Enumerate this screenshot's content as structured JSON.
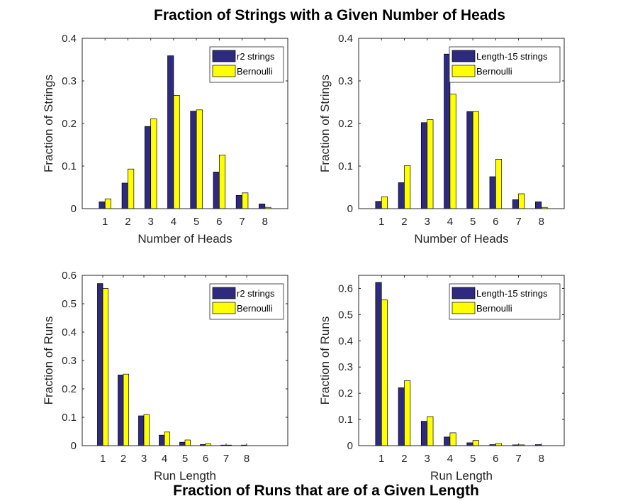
{
  "figure": {
    "top_title": "Fraction of Strings with a Given Number of Heads",
    "bottom_title": "Fraction of Runs that are of a Given Length"
  },
  "colors": {
    "series1": "#2e2a7f",
    "series2": "#ffff00"
  },
  "chart_data": [
    {
      "type": "bar",
      "xlabel": "Number of Heads",
      "ylabel": "Fraction of Strings",
      "categories": [
        "1",
        "2",
        "3",
        "4",
        "5",
        "6",
        "7",
        "8"
      ],
      "xlim": [
        0,
        9
      ],
      "ylim": [
        0,
        0.4
      ],
      "yticks": [
        "0",
        "0.1",
        "0.2",
        "0.3",
        "0.4"
      ],
      "ytick_values": [
        0,
        0.1,
        0.2,
        0.3,
        0.4
      ],
      "legend_position": "top-right",
      "series": [
        {
          "name": "r2 strings",
          "values": [
            0.016,
            0.06,
            0.193,
            0.359,
            0.229,
            0.086,
            0.031,
            0.011
          ]
        },
        {
          "name": "Bernoulli",
          "values": [
            0.023,
            0.093,
            0.211,
            0.266,
            0.232,
            0.126,
            0.037,
            0.003
          ]
        }
      ]
    },
    {
      "type": "bar",
      "xlabel": "Number of Heads",
      "ylabel": "Fraction of Strings",
      "categories": [
        "1",
        "2",
        "3",
        "4",
        "5",
        "6",
        "7",
        "8"
      ],
      "xlim": [
        0,
        9
      ],
      "ylim": [
        0,
        0.4
      ],
      "yticks": [
        "0",
        "0.1",
        "0.2",
        "0.3",
        "0.4"
      ],
      "ytick_values": [
        0,
        0.1,
        0.2,
        0.3,
        0.4
      ],
      "legend_position": "top-right",
      "series": [
        {
          "name": "Length-15 strings",
          "values": [
            0.017,
            0.061,
            0.202,
            0.363,
            0.228,
            0.075,
            0.021,
            0.016
          ]
        },
        {
          "name": "Bernoulli",
          "values": [
            0.028,
            0.101,
            0.209,
            0.269,
            0.228,
            0.116,
            0.035,
            0.003
          ]
        }
      ]
    },
    {
      "type": "bar",
      "xlabel": "Run Length",
      "ylabel": "Fraction of Runs",
      "categories": [
        "1",
        "2",
        "3",
        "4",
        "5",
        "6",
        "7",
        "8"
      ],
      "xlim": [
        0,
        10
      ],
      "ylim": [
        0,
        0.6
      ],
      "yticks": [
        "0",
        "0.1",
        "0.2",
        "0.3",
        "0.4",
        "0.5",
        "0.6"
      ],
      "ytick_values": [
        0,
        0.1,
        0.2,
        0.3,
        0.4,
        0.5,
        0.6
      ],
      "legend_position": "top-right",
      "series": [
        {
          "name": "r2 strings",
          "values": [
            0.571,
            0.249,
            0.105,
            0.037,
            0.012,
            0.004,
            0.002,
            0.002
          ]
        },
        {
          "name": "Bernoulli",
          "values": [
            0.554,
            0.252,
            0.11,
            0.048,
            0.02,
            0.007,
            0.002,
            0.0
          ]
        }
      ]
    },
    {
      "type": "bar",
      "xlabel": "Run Length",
      "ylabel": "Fraction of Runs",
      "categories": [
        "1",
        "2",
        "3",
        "4",
        "5",
        "6",
        "7",
        "8"
      ],
      "xlim": [
        0,
        9
      ],
      "ylim": [
        0,
        0.65
      ],
      "yticks": [
        "0",
        "0.1",
        "0.2",
        "0.3",
        "0.4",
        "0.5",
        "0.6"
      ],
      "ytick_values": [
        0,
        0.1,
        0.2,
        0.3,
        0.4,
        0.5,
        0.6
      ],
      "legend_position": "top-right",
      "series": [
        {
          "name": "Length-15 strings",
          "values": [
            0.623,
            0.221,
            0.093,
            0.033,
            0.011,
            0.004,
            0.003,
            0.004
          ]
        },
        {
          "name": "Bernoulli",
          "values": [
            0.556,
            0.248,
            0.111,
            0.049,
            0.02,
            0.008,
            0.003,
            0.0
          ]
        }
      ]
    }
  ]
}
